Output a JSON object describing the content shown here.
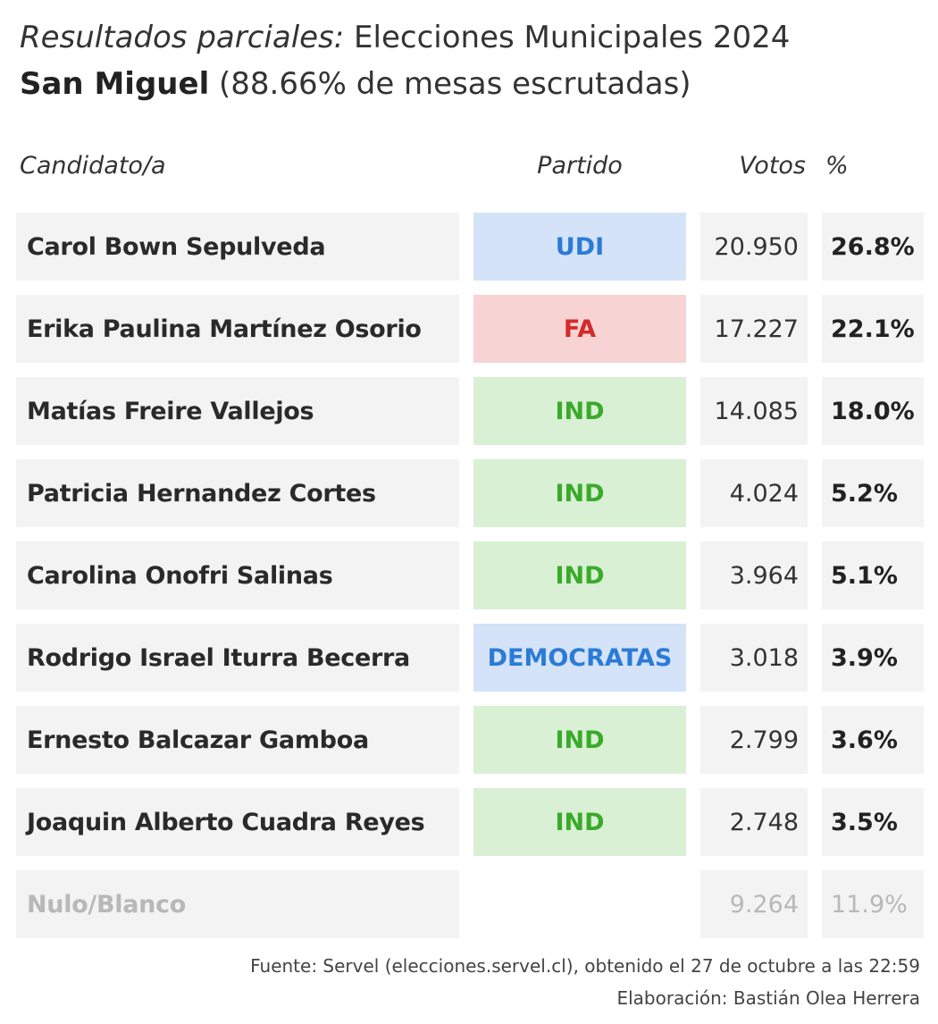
{
  "header": {
    "title_italic": "Resultados parciales:",
    "title_rest": " Elecciones Municipales 2024",
    "subtitle_bold": "San Miguel",
    "subtitle_rest": " (88.66% de mesas escrutadas)"
  },
  "columns": {
    "candidate": "Candidato/a",
    "party": "Partido",
    "votes": "Votos",
    "percent": "%"
  },
  "chart_data": {
    "type": "table",
    "title": "Resultados parciales: Elecciones Municipales 2024",
    "subtitle": "San Miguel (88.66% de mesas escrutadas)",
    "columns": [
      "Candidato/a",
      "Partido",
      "Votos",
      "%"
    ],
    "rows": [
      {
        "candidate": "Carol Bown Sepulveda",
        "party": "UDI",
        "votes": "20.950",
        "percent": "26.8%",
        "party_bg": "#d4e3f8",
        "party_color": "#2b7bd6"
      },
      {
        "candidate": "Erika Paulina Martínez Osorio",
        "party": "FA",
        "votes": "17.227",
        "percent": "22.1%",
        "party_bg": "#f8d3d3",
        "party_color": "#d42a2a"
      },
      {
        "candidate": "Matías Freire Vallejos",
        "party": "IND",
        "votes": "14.085",
        "percent": "18.0%",
        "party_bg": "#d9f0d4",
        "party_color": "#3aaa2a"
      },
      {
        "candidate": "Patricia Hernandez Cortes",
        "party": "IND",
        "votes": "4.024",
        "percent": "5.2%",
        "party_bg": "#d9f0d4",
        "party_color": "#3aaa2a"
      },
      {
        "candidate": "Carolina Onofri Salinas",
        "party": "IND",
        "votes": "3.964",
        "percent": "5.1%",
        "party_bg": "#d9f0d4",
        "party_color": "#3aaa2a"
      },
      {
        "candidate": "Rodrigo Israel Iturra Becerra",
        "party": "DEMOCRATAS",
        "votes": "3.018",
        "percent": "3.9%",
        "party_bg": "#d4e3f8",
        "party_color": "#2b7bd6"
      },
      {
        "candidate": "Ernesto Balcazar Gamboa",
        "party": "IND",
        "votes": "2.799",
        "percent": "3.6%",
        "party_bg": "#d9f0d4",
        "party_color": "#3aaa2a"
      },
      {
        "candidate": "Joaquin Alberto Cuadra Reyes",
        "party": "IND",
        "votes": "2.748",
        "percent": "3.5%",
        "party_bg": "#d9f0d4",
        "party_color": "#3aaa2a"
      },
      {
        "candidate": "Nulo/Blanco",
        "party": "",
        "votes": "9.264",
        "percent": "11.9%",
        "party_bg": "",
        "party_color": "",
        "muted": true
      }
    ]
  },
  "footer": {
    "source": "Fuente: Servel (elecciones.servel.cl), obtenido el 27 de octubre a las 22:59",
    "credit": "Elaboración: Bastián Olea Herrera"
  }
}
